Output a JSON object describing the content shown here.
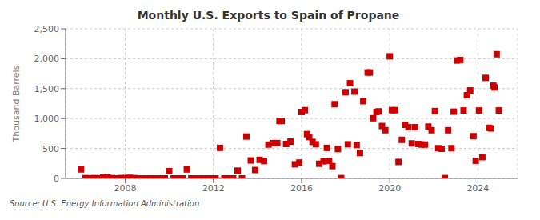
{
  "chart_data": {
    "type": "scatter",
    "title": "Monthly U.S. Exports to Spain of Propane",
    "ylabel": "Thousand Barrels",
    "annotations": [
      "Source: U.S. Energy Information Administration"
    ],
    "color": "#cc0000",
    "marker": "square",
    "grid": true,
    "xlim": [
      2005.3,
      2025.8
    ],
    "xticks": [
      2008,
      2012,
      2016,
      2020,
      2024
    ],
    "ylim": [
      0,
      2500
    ],
    "yticks": [
      0,
      500,
      {
        "value": 1000,
        "label": "1,000"
      },
      {
        "value": 1500,
        "label": "1,500"
      },
      {
        "value": 2000,
        "label": "2,000"
      },
      {
        "value": 2500,
        "label": "2,500"
      }
    ],
    "x": [
      2006.0,
      2006.2,
      2006.4,
      2006.6,
      2006.8,
      2007.0,
      2007.2,
      2007.4,
      2007.6,
      2007.8,
      2008.0,
      2008.2,
      2008.4,
      2008.6,
      2008.8,
      2009.0,
      2009.2,
      2009.4,
      2009.6,
      2009.8,
      2010.0,
      2010.2,
      2010.4,
      2010.6,
      2010.8,
      2011.0,
      2011.2,
      2011.4,
      2011.6,
      2011.8,
      2012.0,
      2012.1,
      2012.3,
      2012.5,
      2012.7,
      2012.9,
      2013.1,
      2013.3,
      2013.5,
      2013.7,
      2013.9,
      2014.1,
      2014.3,
      2014.5,
      2014.7,
      2014.9,
      2015.0,
      2015.1,
      2015.3,
      2015.5,
      2015.7,
      2015.9,
      2016.0,
      2016.15,
      2016.25,
      2016.35,
      2016.5,
      2016.65,
      2016.8,
      2017.0,
      2017.15,
      2017.25,
      2017.4,
      2017.5,
      2017.65,
      2017.8,
      2018.0,
      2018.1,
      2018.2,
      2018.4,
      2018.5,
      2018.65,
      2018.8,
      2019.0,
      2019.1,
      2019.25,
      2019.4,
      2019.5,
      2019.65,
      2019.8,
      2020.0,
      2020.1,
      2020.25,
      2020.4,
      2020.55,
      2020.7,
      2020.85,
      2021.0,
      2021.15,
      2021.3,
      2021.45,
      2021.6,
      2021.75,
      2021.9,
      2022.05,
      2022.2,
      2022.35,
      2022.5,
      2022.65,
      2022.8,
      2022.9,
      2023.05,
      2023.2,
      2023.35,
      2023.5,
      2023.65,
      2023.8,
      2023.9,
      2024.05,
      2024.2,
      2024.35,
      2024.5,
      2024.6,
      2024.7,
      2024.75,
      2024.85,
      2024.95
    ],
    "values": [
      150,
      5,
      0,
      5,
      0,
      25,
      15,
      5,
      0,
      5,
      5,
      10,
      5,
      0,
      0,
      0,
      0,
      0,
      0,
      0,
      120,
      0,
      0,
      0,
      150,
      0,
      0,
      0,
      0,
      0,
      0,
      0,
      510,
      0,
      0,
      0,
      130,
      0,
      700,
      300,
      140,
      310,
      290,
      565,
      590,
      590,
      960,
      960,
      575,
      615,
      235,
      265,
      1110,
      1140,
      740,
      690,
      610,
      570,
      245,
      285,
      510,
      295,
      205,
      1240,
      490,
      5,
      1440,
      570,
      1590,
      1450,
      560,
      425,
      1290,
      1770,
      1770,
      1005,
      1110,
      1120,
      875,
      805,
      2040,
      1140,
      1140,
      275,
      645,
      895,
      855,
      585,
      855,
      575,
      565,
      565,
      865,
      805,
      1125,
      505,
      495,
      5,
      805,
      505,
      1115,
      1970,
      1980,
      1135,
      1390,
      1470,
      705,
      295,
      1135,
      355,
      1680,
      845,
      835,
      1550,
      1520,
      2075,
      1135
    ]
  }
}
